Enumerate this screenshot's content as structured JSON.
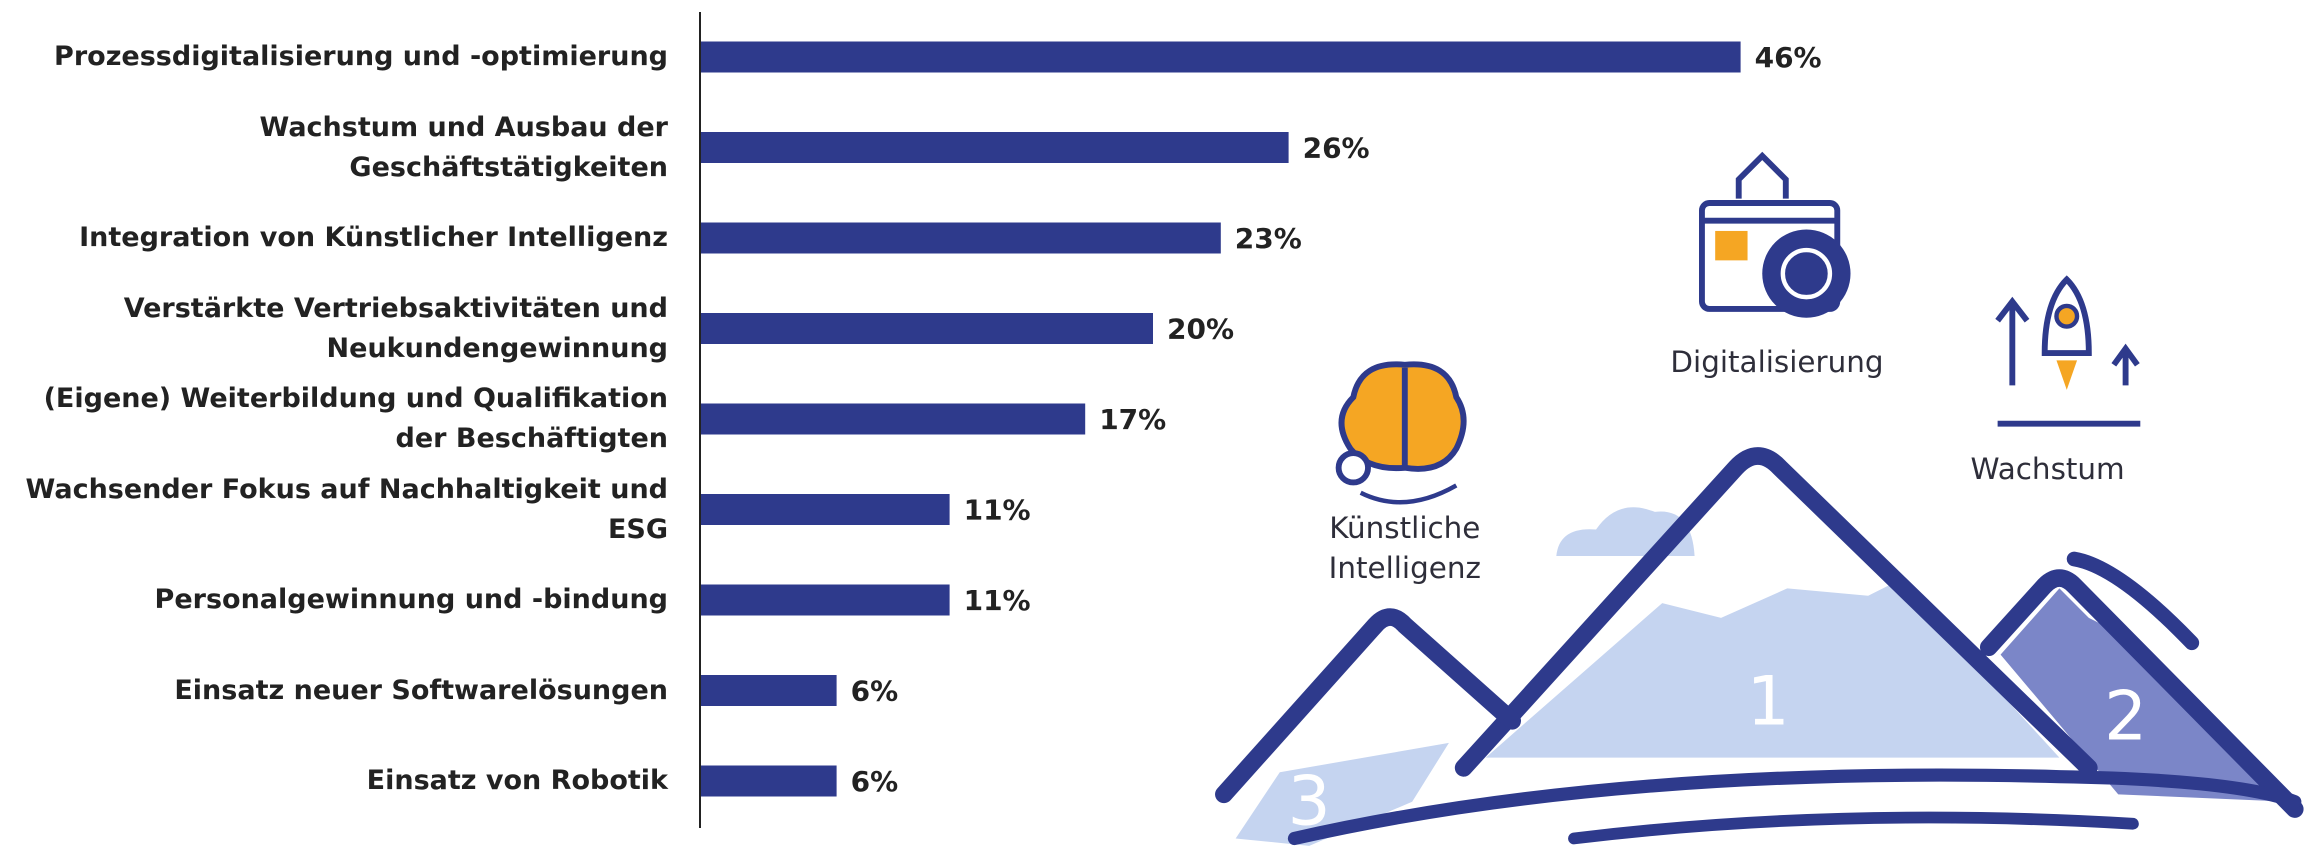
{
  "chart_data": {
    "type": "bar",
    "orientation": "horizontal",
    "categories": [
      "Prozessdigitalisierung und -optimierung",
      "Wachstum und Ausbau der Geschäftstätigkeiten",
      "Integration von Künstlicher Intelligenz",
      "Verstärkte Vertriebsaktivitäten und Neukundengewinnung",
      "(Eigene) Weiterbildung und Qualifikation der Beschäftigten",
      "Wachsender Fokus auf Nachhaltigkeit und ESG",
      "Personalgewinnung und -bindung",
      "Einsatz neuer Softwarelösungen",
      "Einsatz von Robotik"
    ],
    "values": [
      46,
      26,
      23,
      20,
      17,
      11,
      11,
      6,
      6
    ],
    "value_labels": [
      "46%",
      "26%",
      "23%",
      "20%",
      "17%",
      "11%",
      "11%",
      "6%",
      "6%"
    ],
    "color": "#2e3a8c"
  },
  "illustration": {
    "ai": [
      "Künstliche",
      "Intelligenz"
    ],
    "digital": "Digitalisierung",
    "growth": "Wachstum",
    "ranks": [
      "1",
      "2",
      "3"
    ]
  }
}
